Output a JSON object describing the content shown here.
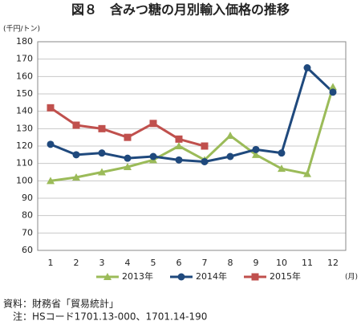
{
  "chart_data": {
    "type": "line",
    "title": "図８　含みつ糖の月別輸入価格の推移",
    "y_axis_label": "(千円/トン)",
    "x_axis_label": "(月)",
    "categories": [
      "1",
      "2",
      "3",
      "4",
      "5",
      "6",
      "7",
      "8",
      "9",
      "10",
      "11",
      "12"
    ],
    "series": [
      {
        "name": "2013年",
        "color": "#9bbb59",
        "marker": "triangle",
        "values": [
          100,
          102,
          105,
          108,
          112,
          120,
          112,
          126,
          115,
          107,
          104,
          154
        ]
      },
      {
        "name": "2014年",
        "color": "#1f497d",
        "marker": "circle",
        "values": [
          121,
          115,
          116,
          113,
          114,
          112,
          111,
          114,
          118,
          116,
          165,
          151
        ]
      },
      {
        "name": "2015年",
        "color": "#c0504d",
        "marker": "square",
        "values": [
          142,
          132,
          130,
          125,
          133,
          124,
          120,
          null,
          null,
          null,
          null,
          null
        ]
      }
    ],
    "ylim": [
      60,
      180
    ],
    "yticks": [
      60,
      70,
      80,
      90,
      100,
      110,
      120,
      130,
      140,
      150,
      160,
      170,
      180
    ],
    "grid": true,
    "legend": "bottom",
    "source": "資料：財務省「貿易統計」",
    "note": "注：HSコード1701.13-000、1701.14-190"
  }
}
